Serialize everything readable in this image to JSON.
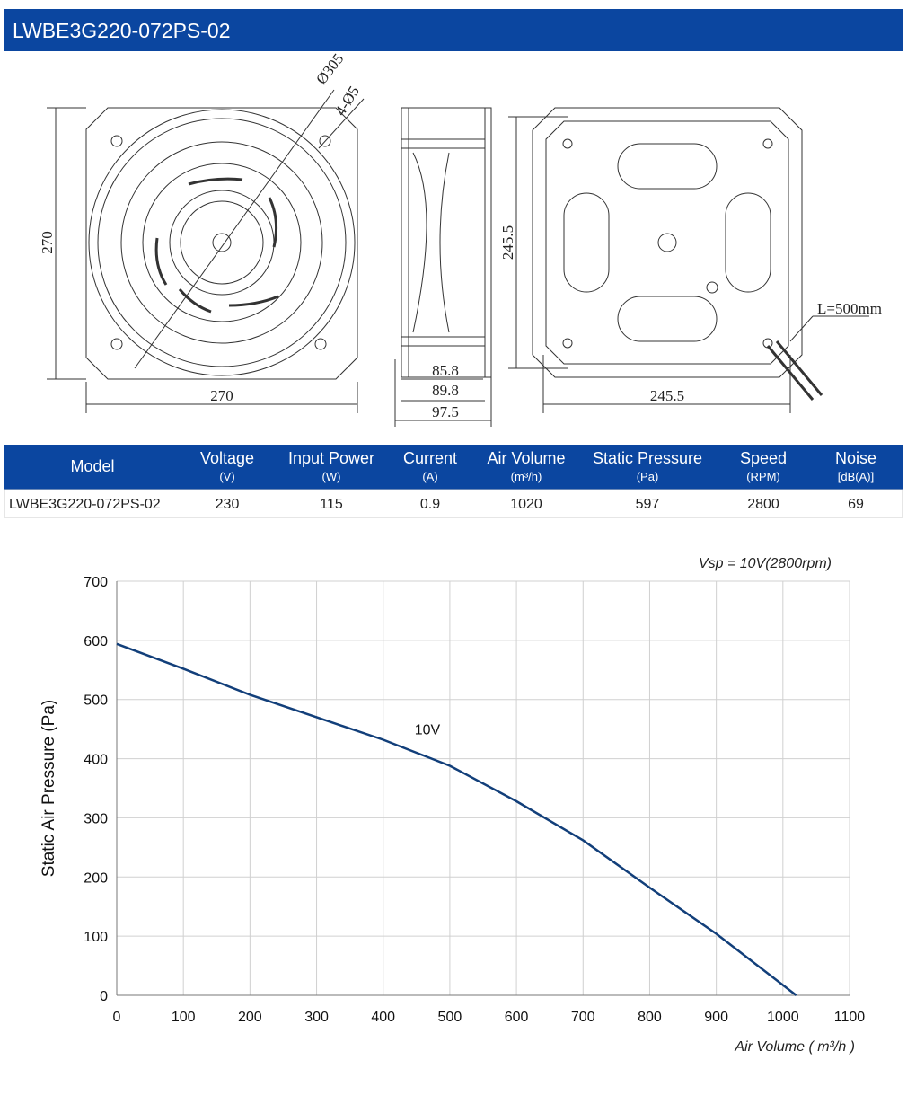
{
  "header": {
    "title": "LWBE3G220-072PS-02"
  },
  "drawing": {
    "labels": {
      "diameter": "Ø305",
      "holes": "4-Ø5",
      "front_height": "270",
      "front_width": "270",
      "depth_1": "85.8",
      "depth_2": "89.8",
      "depth_3": "97.5",
      "back_height": "245.5",
      "back_width": "245.5",
      "cable": "L=500mm"
    }
  },
  "table": {
    "columns": [
      {
        "name": "Model"
      },
      {
        "name": "Voltage",
        "unit": "(V)"
      },
      {
        "name": "Input Power",
        "unit": "(W)"
      },
      {
        "name": "Current",
        "unit": "(A)"
      },
      {
        "name": "Air Volume",
        "unit": "(m³/h)"
      },
      {
        "name": "Static Pressure",
        "unit": "(Pa)"
      },
      {
        "name": "Speed",
        "unit": "(RPM)"
      },
      {
        "name": "Noise",
        "unit": "[dB(A)]"
      }
    ],
    "rows": [
      [
        "LWBE3G220-072PS-02",
        230,
        115,
        0.9,
        1020,
        597,
        2800,
        69
      ]
    ]
  },
  "chart_data": {
    "type": "line",
    "annotation": "Vsp = 10V(2800rpm)",
    "y_label": "Static Air Pressure  (Pa)",
    "x_label": "Air Volume ( m³/h )",
    "x": [
      0,
      100,
      200,
      300,
      400,
      500,
      600,
      700,
      800,
      900,
      1020
    ],
    "series": [
      {
        "name": "10V",
        "color": "#123f7a",
        "values": [
          594,
          552,
          508,
          470,
          432,
          388,
          328,
          262,
          182,
          104,
          0
        ]
      }
    ],
    "xlim": [
      0,
      1100
    ],
    "ylim": [
      0,
      700
    ],
    "xticks": [
      0,
      100,
      200,
      300,
      400,
      500,
      600,
      700,
      800,
      900,
      1000,
      1100
    ],
    "yticks": [
      0,
      100,
      200,
      300,
      400,
      500,
      600,
      700
    ],
    "grid": true
  }
}
